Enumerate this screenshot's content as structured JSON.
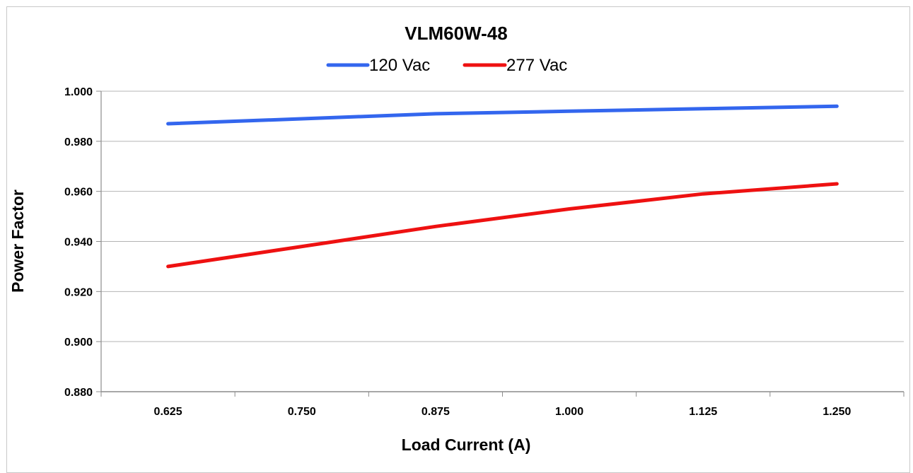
{
  "chart_data": {
    "type": "line",
    "title": "VLM60W-48",
    "xlabel": "Load Current (A)",
    "ylabel": "Power Factor",
    "categories": [
      "0.625",
      "0.750",
      "0.875",
      "1.000",
      "1.125",
      "1.250"
    ],
    "x": [
      0.625,
      0.75,
      0.875,
      1.0,
      1.125,
      1.25
    ],
    "yticks": [
      "0.880",
      "0.900",
      "0.920",
      "0.940",
      "0.960",
      "0.980",
      "1.000"
    ],
    "ylim": [
      0.88,
      1.0
    ],
    "grid": true,
    "legend_position": "top-center",
    "series": [
      {
        "name": "120 Vac",
        "color": "#3366ee",
        "values": [
          0.987,
          0.989,
          0.991,
          0.992,
          0.993,
          0.994
        ]
      },
      {
        "name": "277 Vac",
        "color": "#ee1111",
        "values": [
          0.93,
          0.938,
          0.946,
          0.953,
          0.959,
          0.963
        ]
      }
    ]
  }
}
